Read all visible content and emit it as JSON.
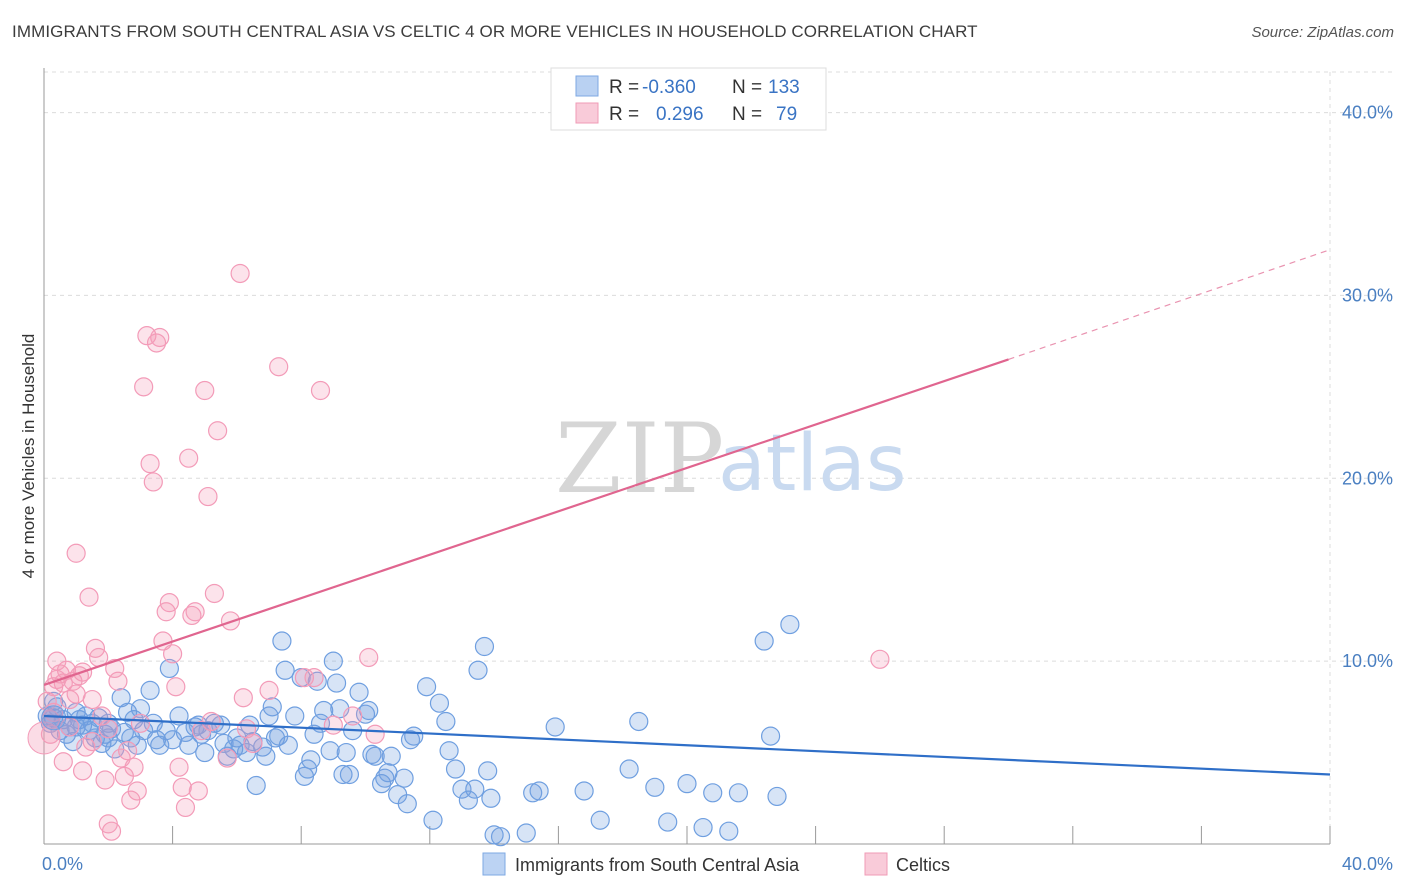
{
  "title": "IMMIGRANTS FROM SOUTH CENTRAL ASIA VS CELTIC 4 OR MORE VEHICLES IN HOUSEHOLD CORRELATION CHART",
  "source": "Source: ZipAtlas.com",
  "watermark": {
    "zip": "ZIP",
    "atlas": "atlas"
  },
  "legend": {
    "rows": [
      {
        "r_label": "R =",
        "r_value": "-0.360",
        "n_label": "N =",
        "n_value": "133"
      },
      {
        "r_label": "R =",
        "r_value": "0.296",
        "n_label": "N =",
        "n_value": "79"
      }
    ]
  },
  "chart_data": {
    "type": "scatter",
    "xlabel": "",
    "ylabel": "4 or more Vehicles in Household",
    "xlim": [
      0,
      40
    ],
    "ylim": [
      0,
      42
    ],
    "x_ticks": [
      {
        "value": 0,
        "label": "0.0%"
      },
      {
        "value": 40,
        "label": "40.0%"
      }
    ],
    "y_ticks": [
      {
        "value": 10,
        "label": "10.0%"
      },
      {
        "value": 20,
        "label": "20.0%"
      },
      {
        "value": 30,
        "label": "30.0%"
      },
      {
        "value": 40,
        "label": "40.0%"
      }
    ],
    "grid": true,
    "legend_position": "top-center",
    "series": [
      {
        "name": "Immigrants from South Central Asia",
        "color": "#6f9fe0",
        "trend_color": "#2f6fc8",
        "trend": {
          "x0": 0,
          "y0": 7.0,
          "x1": 40,
          "y1": 3.8
        },
        "points": [
          [
            0.1,
            7.0
          ],
          [
            0.2,
            6.6
          ],
          [
            0.3,
            7.8
          ],
          [
            0.4,
            7.5
          ],
          [
            0.5,
            6.2
          ],
          [
            0.6,
            6.8
          ],
          [
            0.7,
            6.0
          ],
          [
            0.8,
            6.4
          ],
          [
            0.9,
            5.6
          ],
          [
            1.0,
            7.2
          ],
          [
            1.1,
            6.8
          ],
          [
            1.2,
            6.5
          ],
          [
            1.3,
            7.0
          ],
          [
            1.4,
            6.2
          ],
          [
            1.5,
            6.6
          ],
          [
            1.6,
            5.8
          ],
          [
            1.7,
            6.9
          ],
          [
            1.8,
            5.5
          ],
          [
            1.9,
            6.0
          ],
          [
            2.0,
            6.6
          ],
          [
            2.1,
            6.3
          ],
          [
            2.2,
            5.2
          ],
          [
            2.4,
            8.0
          ],
          [
            2.5,
            6.1
          ],
          [
            2.6,
            7.2
          ],
          [
            2.7,
            5.8
          ],
          [
            2.8,
            6.8
          ],
          [
            2.9,
            5.4
          ],
          [
            3.0,
            7.4
          ],
          [
            3.1,
            6.2
          ],
          [
            3.3,
            8.4
          ],
          [
            3.4,
            6.6
          ],
          [
            3.5,
            5.7
          ],
          [
            3.6,
            5.4
          ],
          [
            3.8,
            6.2
          ],
          [
            3.9,
            9.6
          ],
          [
            4.0,
            5.7
          ],
          [
            4.2,
            7.0
          ],
          [
            4.4,
            6.1
          ],
          [
            4.5,
            5.4
          ],
          [
            4.7,
            6.4
          ],
          [
            4.8,
            6.5
          ],
          [
            4.9,
            6.0
          ],
          [
            5.0,
            5.0
          ],
          [
            5.1,
            6.2
          ],
          [
            5.3,
            6.6
          ],
          [
            5.5,
            6.5
          ],
          [
            5.6,
            5.5
          ],
          [
            5.7,
            4.8
          ],
          [
            5.9,
            5.2
          ],
          [
            6.0,
            5.8
          ],
          [
            6.1,
            5.4
          ],
          [
            6.3,
            5.0
          ],
          [
            6.4,
            6.5
          ],
          [
            6.5,
            5.6
          ],
          [
            6.6,
            3.2
          ],
          [
            6.8,
            5.3
          ],
          [
            6.9,
            4.8
          ],
          [
            7.0,
            7.0
          ],
          [
            7.1,
            7.5
          ],
          [
            7.2,
            5.8
          ],
          [
            7.3,
            5.9
          ],
          [
            7.4,
            11.1
          ],
          [
            7.5,
            9.5
          ],
          [
            7.6,
            5.4
          ],
          [
            7.8,
            7.0
          ],
          [
            8.0,
            9.1
          ],
          [
            8.1,
            3.7
          ],
          [
            8.2,
            4.1
          ],
          [
            8.3,
            4.6
          ],
          [
            8.4,
            6.0
          ],
          [
            8.5,
            8.9
          ],
          [
            8.6,
            6.6
          ],
          [
            8.7,
            7.3
          ],
          [
            8.9,
            5.1
          ],
          [
            9.0,
            10.0
          ],
          [
            9.1,
            8.8
          ],
          [
            9.2,
            7.4
          ],
          [
            9.3,
            3.8
          ],
          [
            9.4,
            5.0
          ],
          [
            9.5,
            3.8
          ],
          [
            9.6,
            6.2
          ],
          [
            9.8,
            8.3
          ],
          [
            10.0,
            7.1
          ],
          [
            10.1,
            7.3
          ],
          [
            10.2,
            4.9
          ],
          [
            10.3,
            4.8
          ],
          [
            10.5,
            3.3
          ],
          [
            10.6,
            3.6
          ],
          [
            10.7,
            3.9
          ],
          [
            10.8,
            4.8
          ],
          [
            11.0,
            2.7
          ],
          [
            11.2,
            3.6
          ],
          [
            11.3,
            2.2
          ],
          [
            11.4,
            5.7
          ],
          [
            11.5,
            5.9
          ],
          [
            11.9,
            8.6
          ],
          [
            12.1,
            1.3
          ],
          [
            12.3,
            7.7
          ],
          [
            12.5,
            6.7
          ],
          [
            12.6,
            5.1
          ],
          [
            12.8,
            4.1
          ],
          [
            13.0,
            3.0
          ],
          [
            13.2,
            2.4
          ],
          [
            13.4,
            3.0
          ],
          [
            13.5,
            9.5
          ],
          [
            13.7,
            10.8
          ],
          [
            13.8,
            4.0
          ],
          [
            13.9,
            2.5
          ],
          [
            14.2,
            0.4
          ],
          [
            14.0,
            0.5
          ],
          [
            15.0,
            0.6
          ],
          [
            15.2,
            2.8
          ],
          [
            15.4,
            2.9
          ],
          [
            15.9,
            6.4
          ],
          [
            16.8,
            2.9
          ],
          [
            17.3,
            1.3
          ],
          [
            18.2,
            4.1
          ],
          [
            18.5,
            6.7
          ],
          [
            19.0,
            3.1
          ],
          [
            19.4,
            1.2
          ],
          [
            20.0,
            3.3
          ],
          [
            20.5,
            0.9
          ],
          [
            20.8,
            2.8
          ],
          [
            21.3,
            0.7
          ],
          [
            21.6,
            2.8
          ],
          [
            22.4,
            11.1
          ],
          [
            22.6,
            5.9
          ],
          [
            22.8,
            2.6
          ],
          [
            23.2,
            12.0
          ],
          [
            0.3,
            6.9
          ],
          [
            1.0,
            6.4
          ],
          [
            2.0,
            5.8
          ]
        ]
      },
      {
        "name": "Celtics",
        "color": "#f39bb8",
        "trend_color": "#e0658f",
        "trend": {
          "x0": 0,
          "y0": 8.7,
          "x1": 30,
          "y1": 26.5
        },
        "trend_dashed_to": {
          "x": 40,
          "y": 32.5
        },
        "points": [
          [
            0.1,
            7.8
          ],
          [
            0.2,
            6.8
          ],
          [
            0.3,
            8.6
          ],
          [
            0.4,
            10.0
          ],
          [
            0.5,
            9.3
          ],
          [
            0.6,
            8.8
          ],
          [
            0.7,
            9.5
          ],
          [
            0.8,
            7.9
          ],
          [
            0.9,
            8.9
          ],
          [
            1.0,
            15.9
          ],
          [
            1.1,
            9.2
          ],
          [
            1.2,
            9.4
          ],
          [
            1.3,
            5.3
          ],
          [
            1.4,
            13.5
          ],
          [
            1.5,
            7.9
          ],
          [
            1.6,
            10.7
          ],
          [
            1.7,
            10.2
          ],
          [
            1.8,
            7.0
          ],
          [
            1.9,
            3.5
          ],
          [
            2.0,
            6.3
          ],
          [
            2.1,
            0.7
          ],
          [
            2.2,
            9.6
          ],
          [
            2.3,
            8.9
          ],
          [
            2.4,
            4.7
          ],
          [
            2.5,
            3.7
          ],
          [
            2.6,
            5.1
          ],
          [
            2.7,
            2.4
          ],
          [
            2.8,
            4.2
          ],
          [
            2.9,
            2.9
          ],
          [
            3.0,
            6.6
          ],
          [
            3.1,
            25.0
          ],
          [
            3.2,
            27.8
          ],
          [
            3.3,
            20.8
          ],
          [
            3.4,
            19.8
          ],
          [
            3.5,
            27.4
          ],
          [
            3.6,
            27.7
          ],
          [
            3.7,
            11.1
          ],
          [
            3.8,
            12.7
          ],
          [
            3.9,
            13.2
          ],
          [
            4.0,
            10.4
          ],
          [
            4.1,
            8.6
          ],
          [
            4.2,
            4.2
          ],
          [
            4.3,
            3.1
          ],
          [
            4.4,
            2.0
          ],
          [
            4.5,
            21.1
          ],
          [
            4.6,
            12.5
          ],
          [
            4.7,
            12.7
          ],
          [
            4.8,
            2.9
          ],
          [
            4.9,
            6.2
          ],
          [
            5.0,
            24.8
          ],
          [
            5.1,
            19.0
          ],
          [
            5.2,
            6.7
          ],
          [
            5.3,
            13.7
          ],
          [
            5.4,
            22.6
          ],
          [
            5.7,
            4.7
          ],
          [
            5.8,
            12.2
          ],
          [
            6.1,
            31.2
          ],
          [
            6.2,
            8.0
          ],
          [
            6.3,
            6.3
          ],
          [
            6.5,
            5.5
          ],
          [
            7.0,
            8.4
          ],
          [
            7.3,
            26.1
          ],
          [
            8.1,
            9.1
          ],
          [
            8.4,
            9.1
          ],
          [
            8.6,
            24.8
          ],
          [
            9.0,
            6.5
          ],
          [
            9.6,
            7.0
          ],
          [
            10.1,
            10.2
          ],
          [
            10.3,
            6.0
          ],
          [
            0.2,
            6.0
          ],
          [
            0.3,
            7.2
          ],
          [
            0.4,
            9.0
          ],
          [
            0.6,
            4.5
          ],
          [
            0.8,
            6.4
          ],
          [
            1.0,
            8.2
          ],
          [
            1.2,
            4.0
          ],
          [
            1.5,
            5.6
          ],
          [
            2.0,
            1.1
          ],
          [
            26.0,
            10.1
          ]
        ]
      }
    ]
  },
  "bottom_legend": [
    {
      "label": "Immigrants from South Central Asia",
      "color": "#a9c6ee"
    },
    {
      "label": "Celtics",
      "color": "#f7bfd0"
    }
  ]
}
